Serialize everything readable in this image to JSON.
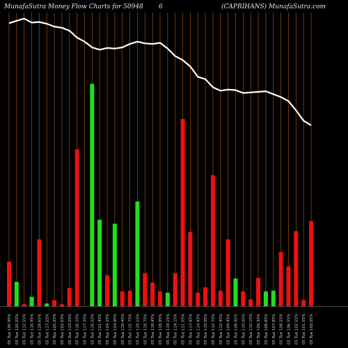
{
  "header": {
    "left": "MunafaSutra  Money Flow  Charts for 50948",
    "middle": "6",
    "right": "(CAPRIHANS) MunafaSutra.com"
  },
  "colors": {
    "background": "#000000",
    "gridline": "#a0520d",
    "up_bar": "#22dd22",
    "down_bar": "#ee1111",
    "price_line": "#ffffff"
  },
  "chart_data": {
    "type": "bar",
    "title": "MunafaSutra  Money Flow  Charts for 50948",
    "categories": [
      "05 Tue 195.95%",
      "05 Tue 120.25%",
      "05 Tue 112.55%",
      "05 Tue 116.95%",
      "05 Tue 128.65%",
      "05 Tue 117.25%",
      "05 Tue 120.25%",
      "05 Tue 122.65%",
      "05 Tue 119.25%",
      "05 Tue 116.15%",
      "05 Tue 117.35%",
      "05 Tue 116.55%",
      "05 Tue 121.45%",
      "05 Tue 124.25%",
      "05 Tue 124.95%",
      "05 Tue 119.45%",
      "05 Tue 115.75%",
      "05 Tue 119.15%",
      "05 Tue 118.75%",
      "05 Tue 118.45%",
      "05 Tue 118.95%",
      "05 Tue 119.15%",
      "05 Tue 114.15%",
      "05 Tue 111.55%",
      "05 Tue 113.45%",
      "05 Tue 114.45%",
      "05 Tue 119.95%",
      "05 Tue 112.75%",
      "05 Tue 112.45%",
      "05 Tue 109.45%",
      "05 Tue 108.95%",
      "05 Tue 110.05%",
      "05 Tue 110.15%",
      "05 Tue 109.35%",
      "05 Tue 108.85%",
      "05 Tue 107.85%",
      "05 Tue 108.25%",
      "05 Tue 106.55%",
      "05 Tue 102.55%",
      "05 Tue 101.55%",
      "05 Tue 102.05%"
    ],
    "volume": [
      66,
      36,
      3,
      14,
      99,
      4,
      9,
      3,
      27,
      232,
      0,
      329,
      128,
      46,
      122,
      22,
      23,
      155,
      49,
      35,
      22,
      20,
      49,
      277,
      110,
      20,
      28,
      194,
      23,
      99,
      41,
      22,
      10,
      42,
      22,
      23,
      80,
      59,
      111,
      9,
      126
    ],
    "direction": [
      "down",
      "up",
      "down",
      "up",
      "down",
      "up",
      "down",
      "down",
      "down",
      "down",
      "up",
      "up",
      "up",
      "down",
      "up",
      "down",
      "down",
      "up",
      "down",
      "down",
      "down",
      "up",
      "down",
      "down",
      "down",
      "down",
      "down",
      "down",
      "down",
      "down",
      "up",
      "down",
      "down",
      "down",
      "up",
      "up",
      "down",
      "down",
      "down",
      "down",
      "down"
    ],
    "price": [
      410,
      414,
      418,
      411,
      412,
      409,
      404,
      402,
      397,
      385,
      378,
      368,
      364,
      367,
      366,
      368,
      374,
      378,
      375,
      374,
      376,
      366,
      353,
      346,
      335,
      317,
      313,
      299,
      293,
      295,
      294,
      289,
      290,
      291,
      292,
      287,
      282,
      275,
      259,
      241,
      233
    ],
    "ylim_volume": [
      0,
      350
    ],
    "ylim_price": [
      215,
      420
    ],
    "xlabel": "",
    "ylabel": "",
    "grid": true
  }
}
